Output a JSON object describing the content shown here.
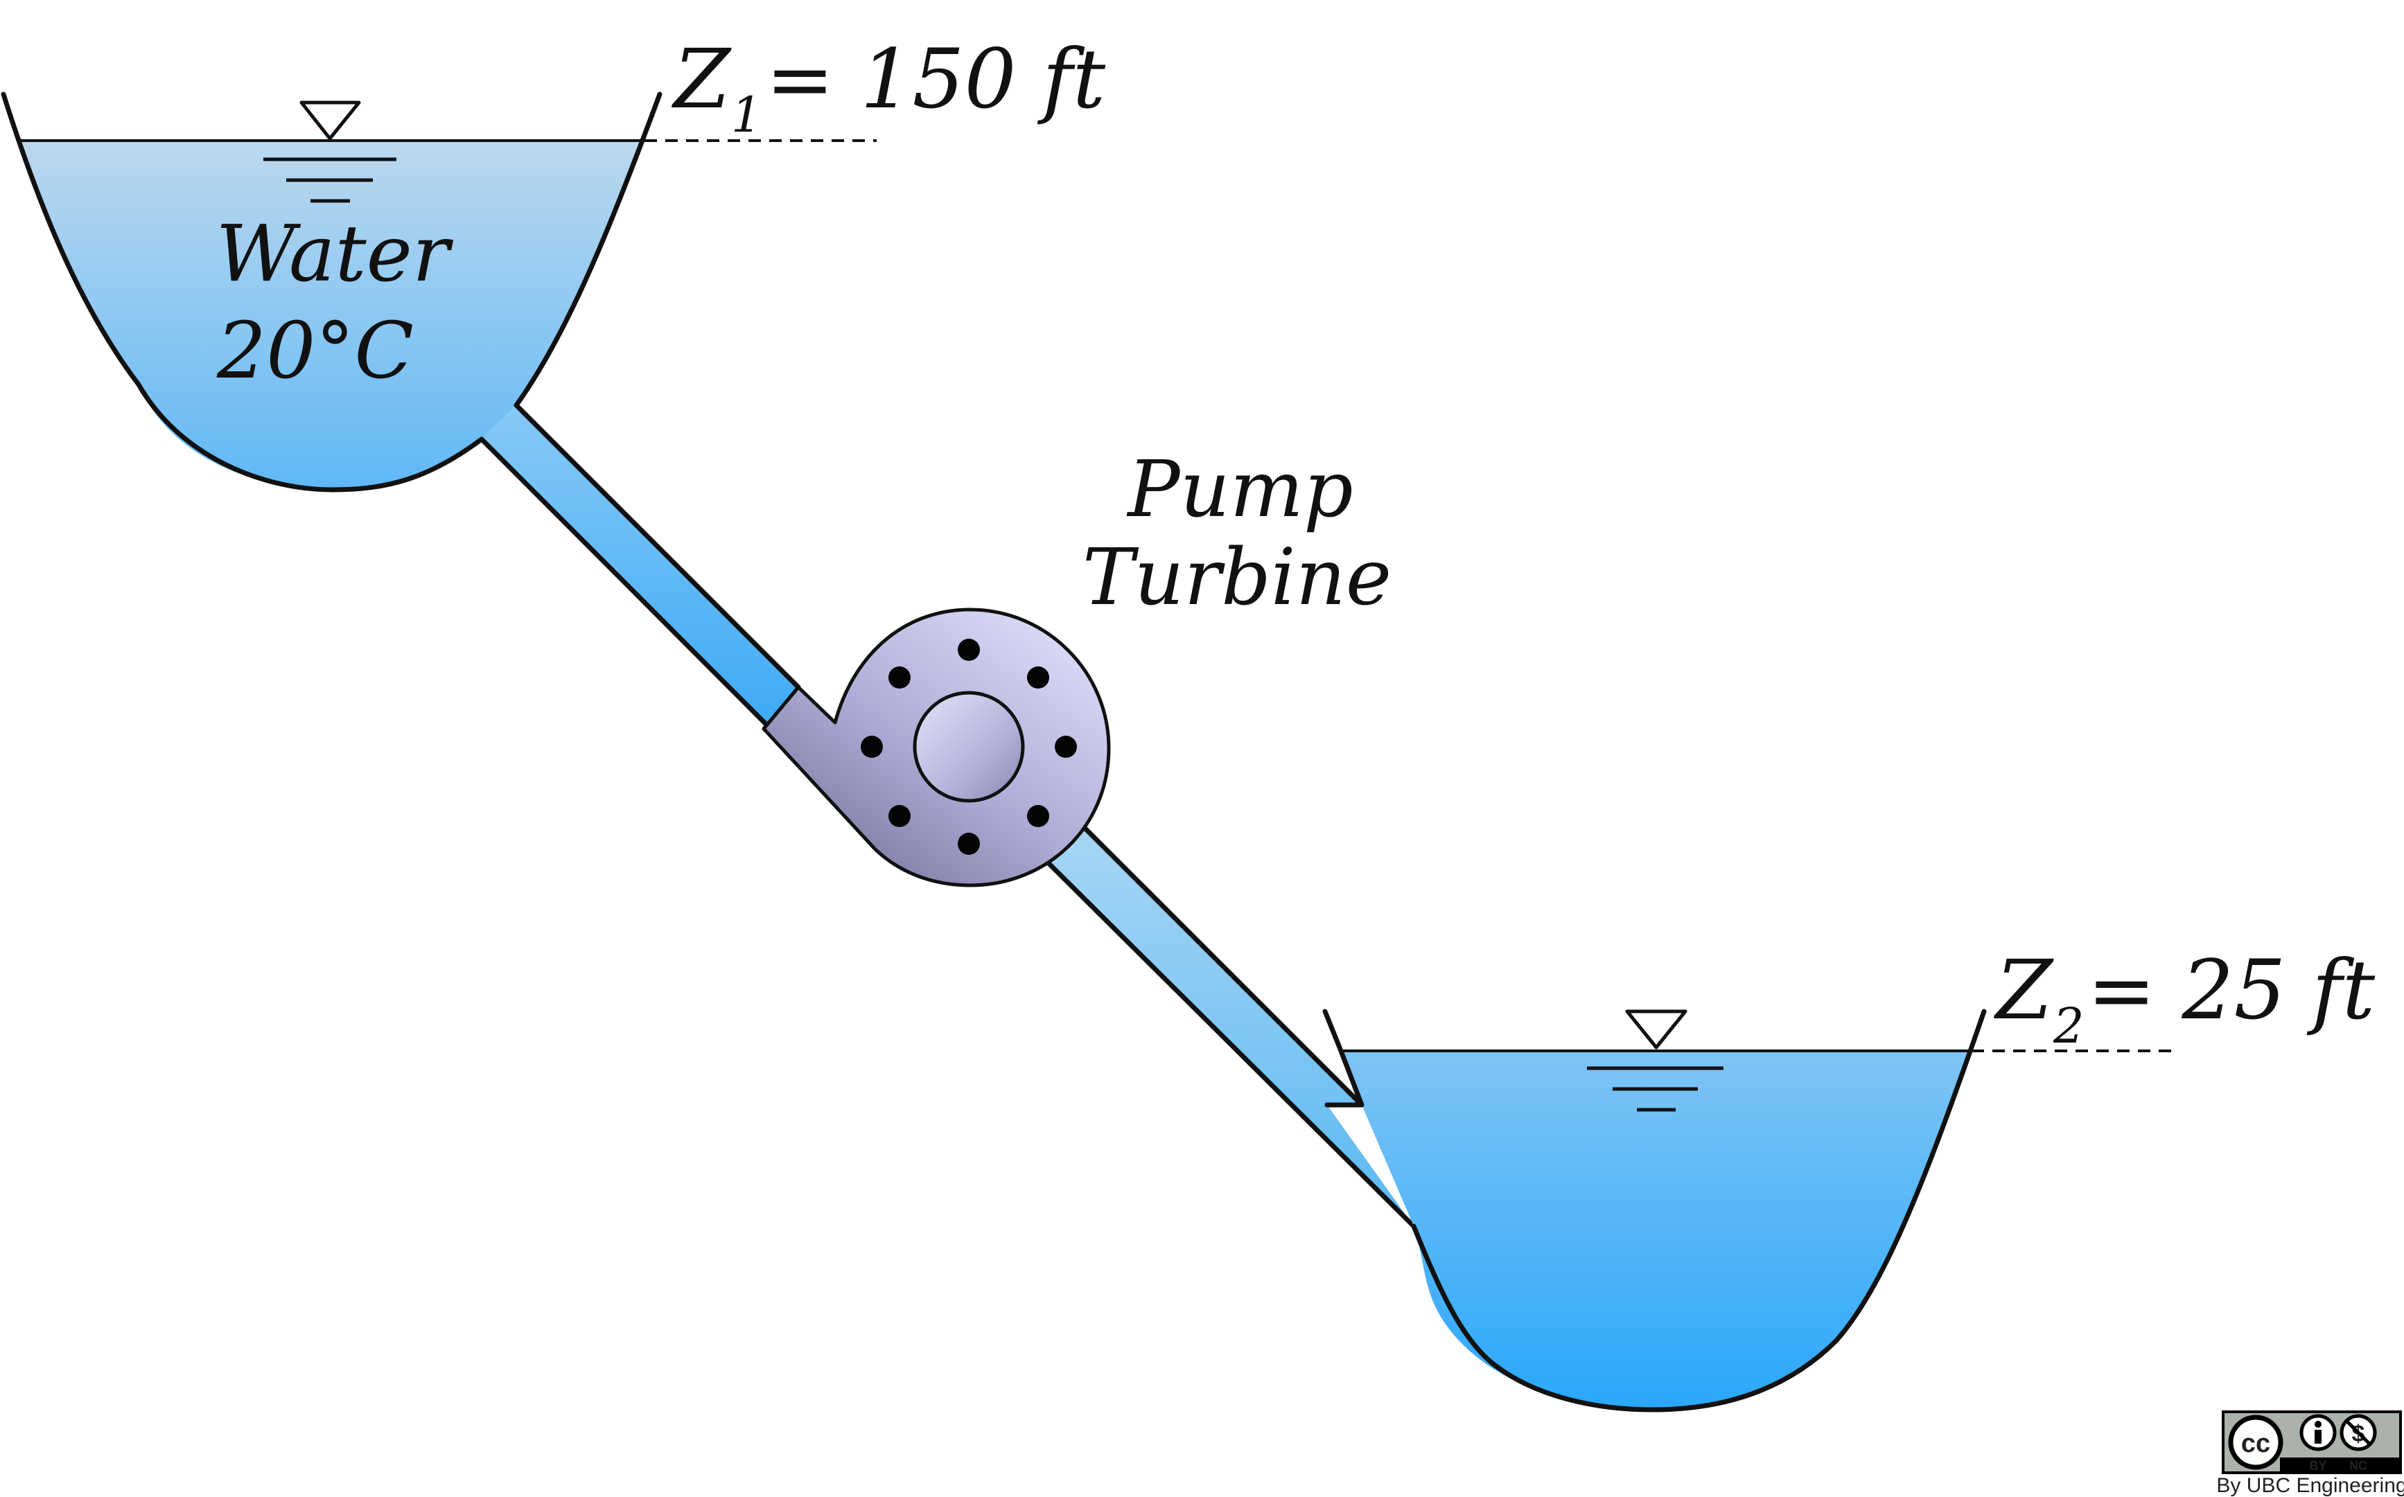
{
  "upper_reservoir": {
    "fluid_label": "Water",
    "temperature_label": "20°C",
    "elevation": {
      "symbol": "Z",
      "subscript": "1",
      "value": "= 150 ft"
    }
  },
  "machine": {
    "line1": "Pump",
    "line2": "Turbine"
  },
  "lower_reservoir": {
    "elevation": {
      "symbol": "Z",
      "subscript": "2",
      "value": "= 25 ft"
    }
  },
  "license": {
    "badge_cc": "cc",
    "badge_by": "BY",
    "badge_nc": "NC",
    "credit": "By UBC Engineering"
  },
  "colors": {
    "water_light": "#bcd8ee",
    "water_deep": "#2aa7fb",
    "pump_light": "#d0d0f2",
    "pump_dark": "#7c7aa2",
    "outline": "#111111"
  }
}
